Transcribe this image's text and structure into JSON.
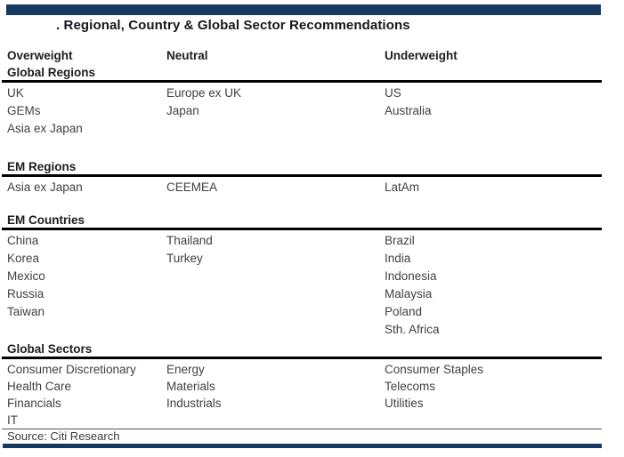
{
  "page": {
    "title": ". Regional, Country & Global Sector Recommendations",
    "source": "Source: Citi Research"
  },
  "colors": {
    "accent_navy": "#17395f",
    "rule_black": "#000000"
  },
  "table": {
    "columns": [
      "Overweight",
      "Neutral",
      "Underweight"
    ],
    "sections": [
      {
        "heading": "Global Regions",
        "rows": [
          [
            "UK",
            "Europe ex UK",
            "US"
          ],
          [
            "GEMs",
            "Japan",
            "Australia"
          ],
          [
            "Asia ex Japan",
            "",
            ""
          ]
        ]
      },
      {
        "heading": "EM Regions",
        "rows": [
          [
            "Asia ex Japan",
            "CEEMEA",
            "LatAm"
          ]
        ]
      },
      {
        "heading": "EM Countries",
        "rows": [
          [
            "China",
            "Thailand",
            "Brazil"
          ],
          [
            "Korea",
            "Turkey",
            "India"
          ],
          [
            "Mexico",
            "",
            "Indonesia"
          ],
          [
            "Russia",
            "",
            "Malaysia"
          ],
          [
            "Taiwan",
            "",
            "Poland"
          ],
          [
            "",
            "",
            "Sth. Africa"
          ]
        ]
      },
      {
        "heading": "Global Sectors",
        "rows": [
          [
            "Consumer Discretionary",
            "Energy",
            "Consumer Staples"
          ],
          [
            "Health Care",
            "Materials",
            "Telecoms"
          ],
          [
            "Financials",
            "Industrials",
            "Utilities"
          ],
          [
            "IT",
            "",
            ""
          ]
        ]
      }
    ]
  }
}
